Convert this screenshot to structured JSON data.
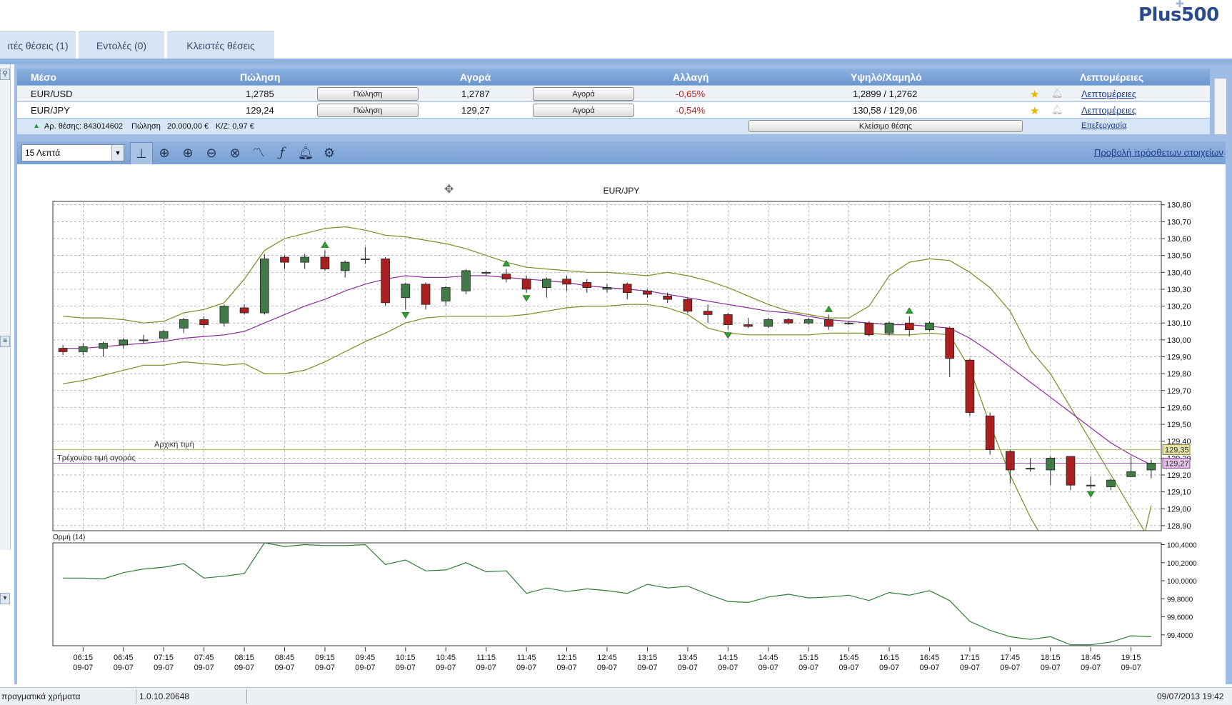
{
  "brand": {
    "logo_text": "Plus500"
  },
  "tabs": [
    {
      "label": "ιτές θέσεις (1)"
    },
    {
      "label": "Εντολές (0)"
    },
    {
      "label": "Κλειστές θέσεις"
    }
  ],
  "table": {
    "headers": {
      "instrument": "Μέσο",
      "sell": "Πώληση",
      "buy": "Αγορά",
      "change": "Αλλαγή",
      "highlow": "Υψηλό/Χαμηλό",
      "details": "Λεπτομέρειες"
    },
    "rows": [
      {
        "name": "EUR/USD",
        "sell": "1,2785",
        "sell_btn": "Πώληση",
        "buy": "1,2787",
        "buy_btn": "Αγορά",
        "change": "-0,65%",
        "highlow": "1,2899 / 1,2762",
        "details": "Λεπτομέρειες"
      },
      {
        "name": "EUR/JPY",
        "sell": "129,24",
        "sell_btn": "Πώληση",
        "buy": "129,27",
        "buy_btn": "Αγορά",
        "change": "-0,54%",
        "highlow": "130,58 / 129,06",
        "details": "Λεπτομέρειες"
      }
    ],
    "position": {
      "number_label": "Αρ. θέσης: 843014602",
      "side": "Πώληση",
      "amount": "20.000,00 €",
      "pnl": "Κ/Ζ: 0,97 €",
      "close_btn": "Κλείσιμο θέσης",
      "edit": "Επεξεργασία"
    }
  },
  "toolbar": {
    "timeframe": "15 Λεπτά",
    "more_link": "Προβολή πρόσθετων στοιχείων"
  },
  "icons": [
    "search-icon",
    "cursor-mode-icon",
    "crosshair-icon",
    "zoom-in-icon",
    "zoom-out-icon",
    "zoom-reset-icon",
    "line-chart-icon",
    "indicator-fx-icon",
    "alert-bell-icon",
    "settings-gear-icon",
    "star-icon",
    "bell-icon"
  ],
  "chart_data": {
    "type": "candlestick",
    "title": "EUR/JPY",
    "initial_price_label": "Αρχική τιμή",
    "initial_price": "129,35",
    "current_price_label": "Τρέχουσα τιμή αγοράς",
    "current_price": "129,27",
    "y_ticks": [
      "130,80",
      "130,70",
      "130,60",
      "130,50",
      "130,40",
      "130,30",
      "130,20",
      "130,10",
      "130,00",
      "129,90",
      "129,80",
      "129,70",
      "129,60",
      "129,50",
      "129,40",
      "129,30",
      "129,20",
      "129,10",
      "129,00",
      "128,90"
    ],
    "ylim": [
      128.87,
      130.82
    ],
    "x_labels": [
      [
        "06:15",
        "09-07"
      ],
      [
        "06:45",
        "09-07"
      ],
      [
        "07:15",
        "09-07"
      ],
      [
        "07:45",
        "09-07"
      ],
      [
        "08:15",
        "09-07"
      ],
      [
        "08:45",
        "09-07"
      ],
      [
        "09:15",
        "09-07"
      ],
      [
        "09:45",
        "09-07"
      ],
      [
        "10:15",
        "09-07"
      ],
      [
        "10:45",
        "09-07"
      ],
      [
        "11:15",
        "09-07"
      ],
      [
        "11:45",
        "09-07"
      ],
      [
        "12:15",
        "09-07"
      ],
      [
        "12:45",
        "09-07"
      ],
      [
        "13:15",
        "09-07"
      ],
      [
        "13:45",
        "09-07"
      ],
      [
        "14:15",
        "09-07"
      ],
      [
        "14:45",
        "09-07"
      ],
      [
        "15:15",
        "09-07"
      ],
      [
        "15:45",
        "09-07"
      ],
      [
        "16:15",
        "09-07"
      ],
      [
        "16:45",
        "09-07"
      ],
      [
        "17:15",
        "09-07"
      ],
      [
        "17:45",
        "09-07"
      ],
      [
        "18:15",
        "09-07"
      ],
      [
        "18:45",
        "09-07"
      ],
      [
        "19:15",
        "09-07"
      ]
    ],
    "candles": [
      [
        129.95,
        129.93,
        129.97,
        129.91
      ],
      [
        129.93,
        129.96,
        129.98,
        129.91
      ],
      [
        129.95,
        129.98,
        129.99,
        129.9
      ],
      [
        129.97,
        130.0,
        130.01,
        129.95
      ],
      [
        130.0,
        130.0,
        130.03,
        129.98
      ],
      [
        130.01,
        130.05,
        130.06,
        129.99
      ],
      [
        130.07,
        130.12,
        130.13,
        130.04
      ],
      [
        130.12,
        130.09,
        130.14,
        130.07
      ],
      [
        130.1,
        130.2,
        130.21,
        130.08
      ],
      [
        130.19,
        130.16,
        130.21,
        130.15
      ],
      [
        130.16,
        130.48,
        130.51,
        130.15
      ],
      [
        130.49,
        130.46,
        130.5,
        130.42
      ],
      [
        130.46,
        130.49,
        130.51,
        130.42
      ],
      [
        130.49,
        130.42,
        130.53,
        130.41
      ],
      [
        130.41,
        130.46,
        130.47,
        130.37
      ],
      [
        130.48,
        130.48,
        130.55,
        130.45
      ],
      [
        130.48,
        130.22,
        130.49,
        130.2
      ],
      [
        130.25,
        130.33,
        130.34,
        130.18
      ],
      [
        130.33,
        130.21,
        130.34,
        130.18
      ],
      [
        130.23,
        130.31,
        130.32,
        130.2
      ],
      [
        130.29,
        130.41,
        130.42,
        130.27
      ],
      [
        130.4,
        130.4,
        130.41,
        130.38
      ],
      [
        130.39,
        130.36,
        130.42,
        130.34
      ],
      [
        130.36,
        130.3,
        130.38,
        130.28
      ],
      [
        130.31,
        130.36,
        130.37,
        130.25
      ],
      [
        130.36,
        130.33,
        130.38,
        130.29
      ],
      [
        130.34,
        130.31,
        130.36,
        130.28
      ],
      [
        130.3,
        130.31,
        130.33,
        130.28
      ],
      [
        130.33,
        130.28,
        130.34,
        130.24
      ],
      [
        130.29,
        130.27,
        130.3,
        130.25
      ],
      [
        130.26,
        130.24,
        130.28,
        130.22
      ],
      [
        130.24,
        130.17,
        130.25,
        130.16
      ],
      [
        130.17,
        130.15,
        130.21,
        130.1
      ],
      [
        130.15,
        130.09,
        130.16,
        130.06
      ],
      [
        130.09,
        130.08,
        130.13,
        130.07
      ],
      [
        130.08,
        130.12,
        130.13,
        130.07
      ],
      [
        130.12,
        130.1,
        130.13,
        130.09
      ],
      [
        130.1,
        130.12,
        130.13,
        130.09
      ],
      [
        130.12,
        130.08,
        130.15,
        130.06
      ],
      [
        130.1,
        130.1,
        130.11,
        130.09
      ],
      [
        130.1,
        130.03,
        130.11,
        130.02
      ],
      [
        130.04,
        130.1,
        130.11,
        130.03
      ],
      [
        130.1,
        130.06,
        130.14,
        130.02
      ],
      [
        130.06,
        130.1,
        130.11,
        130.05
      ],
      [
        130.07,
        129.89,
        130.08,
        129.78
      ],
      [
        129.88,
        129.57,
        129.89,
        129.55
      ],
      [
        129.55,
        129.35,
        129.57,
        129.32
      ],
      [
        129.34,
        129.23,
        129.35,
        129.15
      ],
      [
        129.24,
        129.24,
        129.3,
        129.22
      ],
      [
        129.23,
        129.3,
        129.31,
        129.14
      ],
      [
        129.31,
        129.14,
        129.31,
        129.11
      ],
      [
        129.14,
        129.14,
        129.19,
        129.12
      ],
      [
        129.13,
        129.17,
        129.18,
        129.11
      ],
      [
        129.19,
        129.22,
        129.31,
        129.19
      ],
      [
        129.23,
        129.27,
        129.29,
        129.18
      ]
    ],
    "arrows_up": [
      13,
      22,
      38,
      42
    ],
    "arrows_down": [
      17,
      23,
      33,
      51
    ],
    "ma_series": [
      129.95,
      129.95,
      129.96,
      129.97,
      129.98,
      129.99,
      130.01,
      130.02,
      130.03,
      130.05,
      130.1,
      130.15,
      130.2,
      130.24,
      130.29,
      130.33,
      130.36,
      130.38,
      130.37,
      130.37,
      130.38,
      130.38,
      130.37,
      130.36,
      130.35,
      130.34,
      130.32,
      130.31,
      130.3,
      130.29,
      130.27,
      130.25,
      130.23,
      130.21,
      130.19,
      130.17,
      130.16,
      130.14,
      130.12,
      130.11,
      130.1,
      130.09,
      130.09,
      130.08,
      130.07,
      130.01,
      129.93,
      129.84,
      129.75,
      129.66,
      129.57,
      129.48,
      129.39,
      129.32,
      129.26
    ],
    "bb_upper": [
      130.14,
      130.13,
      130.13,
      130.12,
      130.1,
      130.11,
      130.16,
      130.18,
      130.22,
      130.36,
      130.53,
      130.6,
      130.63,
      130.66,
      130.67,
      130.65,
      130.62,
      130.61,
      130.59,
      130.57,
      130.54,
      130.5,
      130.46,
      130.43,
      130.42,
      130.41,
      130.4,
      130.4,
      130.39,
      130.38,
      130.4,
      130.38,
      130.35,
      130.31,
      130.26,
      130.21,
      130.17,
      130.15,
      130.13,
      130.13,
      130.2,
      130.38,
      130.46,
      130.48,
      130.47,
      130.4,
      130.31,
      130.17,
      129.94,
      129.8,
      129.6,
      129.4,
      129.2,
      129.0,
      128.8
    ],
    "bb_lower": [
      129.74,
      129.76,
      129.79,
      129.82,
      129.85,
      129.85,
      129.87,
      129.86,
      129.85,
      129.86,
      129.8,
      129.8,
      129.82,
      129.87,
      129.93,
      129.99,
      130.04,
      130.1,
      130.13,
      130.14,
      130.14,
      130.14,
      130.14,
      130.15,
      130.17,
      130.19,
      130.2,
      130.2,
      130.21,
      130.21,
      130.19,
      130.15,
      130.07,
      130.04,
      130.03,
      130.03,
      130.03,
      130.03,
      130.04,
      130.04,
      130.04,
      130.03,
      130.03,
      130.04,
      130.03,
      129.83,
      129.5,
      129.2,
      128.95,
      128.75,
      128.55,
      128.4,
      128.4,
      128.5,
      129.02
    ],
    "momentum": {
      "label": "Ορμή (14)",
      "y_ticks": [
        "100,4000",
        "100,2000",
        "100,0000",
        "99,8000",
        "99,6000",
        "99,4000"
      ],
      "ylim": [
        99.28,
        100.42
      ],
      "values": [
        100.03,
        100.03,
        100.02,
        100.09,
        100.13,
        100.15,
        100.19,
        100.03,
        100.05,
        100.08,
        100.42,
        100.38,
        100.4,
        100.39,
        100.39,
        100.4,
        100.18,
        100.23,
        100.11,
        100.12,
        100.2,
        100.1,
        100.11,
        99.86,
        99.92,
        99.88,
        99.91,
        99.89,
        99.86,
        99.96,
        99.92,
        99.94,
        99.85,
        99.77,
        99.76,
        99.82,
        99.85,
        99.81,
        99.82,
        99.84,
        99.78,
        99.87,
        99.84,
        99.89,
        99.78,
        99.55,
        99.45,
        99.38,
        99.35,
        99.38,
        99.29,
        99.29,
        99.32,
        99.39,
        99.38
      ]
    }
  },
  "status": {
    "left": "πραγματικά χρήματα",
    "version": "1.0.10.20648",
    "datetime": "09/07/2013 19:42"
  }
}
